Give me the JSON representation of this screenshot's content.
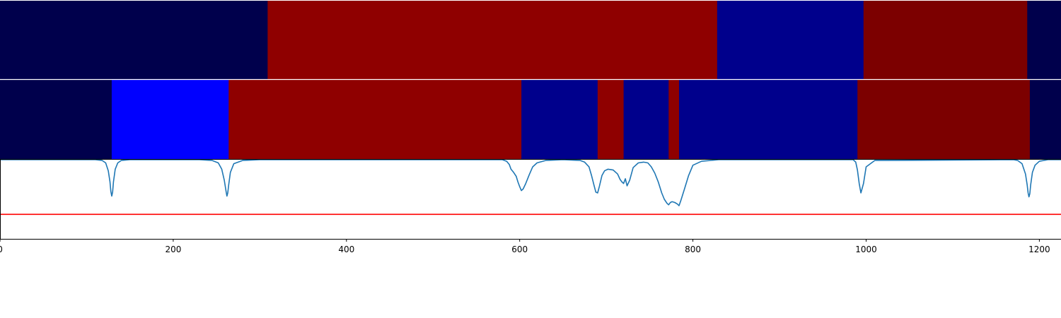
{
  "chart_data": [
    {
      "type": "heatmap",
      "xlim": [
        0,
        1225
      ],
      "segments": [
        {
          "start": 0,
          "end": 309,
          "color": "#00004c"
        },
        {
          "start": 309,
          "end": 828,
          "color": "#8f0000"
        },
        {
          "start": 828,
          "end": 997,
          "color": "#00008c"
        },
        {
          "start": 997,
          "end": 1186,
          "color": "#7c0000"
        },
        {
          "start": 1186,
          "end": 1225,
          "color": "#00004c"
        }
      ]
    },
    {
      "type": "heatmap",
      "xlim": [
        0,
        1225
      ],
      "segments": [
        {
          "start": 0,
          "end": 129,
          "color": "#00004c"
        },
        {
          "start": 129,
          "end": 264,
          "color": "#0000ff"
        },
        {
          "start": 264,
          "end": 602,
          "color": "#8f0000"
        },
        {
          "start": 602,
          "end": 690,
          "color": "#00008c"
        },
        {
          "start": 690,
          "end": 720,
          "color": "#8f0000"
        },
        {
          "start": 720,
          "end": 772,
          "color": "#00008c"
        },
        {
          "start": 772,
          "end": 784,
          "color": "#8f0000"
        },
        {
          "start": 784,
          "end": 990,
          "color": "#00008c"
        },
        {
          "start": 990,
          "end": 1189,
          "color": "#7c0000"
        },
        {
          "start": 1189,
          "end": 1225,
          "color": "#00004c"
        }
      ]
    },
    {
      "type": "line",
      "xlim": [
        0,
        1225
      ],
      "ylim": [
        0,
        1
      ],
      "threshold": 0.31,
      "line_color": "#1f77b4",
      "threshold_color": "#ff0000",
      "x": [
        0,
        110,
        118,
        122,
        125,
        127,
        128,
        129,
        130,
        131,
        133,
        136,
        140,
        150,
        230,
        245,
        252,
        256,
        259,
        261,
        262,
        263,
        264,
        266,
        270,
        280,
        300,
        580,
        585,
        588,
        590,
        593,
        596,
        598,
        600,
        602,
        604,
        607,
        611,
        615,
        620,
        630,
        650,
        670,
        675,
        680,
        683,
        686,
        688,
        690,
        692,
        695,
        698,
        702,
        708,
        713,
        716,
        718,
        720,
        722,
        724,
        727,
        731,
        737,
        743,
        748,
        752,
        756,
        760,
        764,
        767,
        770,
        772,
        774,
        776,
        779,
        782,
        784,
        786,
        790,
        795,
        800,
        810,
        830,
        985,
        988,
        990,
        992,
        994,
        997,
        1000,
        1010,
        1170,
        1175,
        1180,
        1184,
        1186,
        1187,
        1188,
        1189,
        1190,
        1192,
        1195,
        1200,
        1210,
        1225
      ],
      "y": [
        1,
        1,
        0.99,
        0.96,
        0.86,
        0.72,
        0.6,
        0.54,
        0.59,
        0.72,
        0.88,
        0.96,
        0.99,
        1,
        1,
        0.99,
        0.96,
        0.88,
        0.74,
        0.6,
        0.54,
        0.58,
        0.68,
        0.84,
        0.95,
        0.99,
        1,
        1,
        0.98,
        0.94,
        0.88,
        0.84,
        0.79,
        0.72,
        0.66,
        0.61,
        0.63,
        0.7,
        0.81,
        0.91,
        0.96,
        0.99,
        1,
        0.99,
        0.97,
        0.91,
        0.8,
        0.67,
        0.59,
        0.58,
        0.66,
        0.8,
        0.86,
        0.88,
        0.87,
        0.82,
        0.75,
        0.72,
        0.7,
        0.76,
        0.67,
        0.74,
        0.9,
        0.96,
        0.97,
        0.96,
        0.91,
        0.83,
        0.72,
        0.58,
        0.5,
        0.45,
        0.43,
        0.46,
        0.47,
        0.46,
        0.44,
        0.42,
        0.48,
        0.62,
        0.8,
        0.93,
        0.98,
        1,
        1,
        0.97,
        0.87,
        0.7,
        0.58,
        0.7,
        0.91,
        0.99,
        1,
        0.99,
        0.95,
        0.82,
        0.68,
        0.58,
        0.53,
        0.57,
        0.68,
        0.84,
        0.93,
        0.98,
        1,
        1
      ]
    }
  ],
  "x_ticks": [
    "0",
    "200",
    "400",
    "600",
    "800",
    "1000",
    "1200"
  ]
}
